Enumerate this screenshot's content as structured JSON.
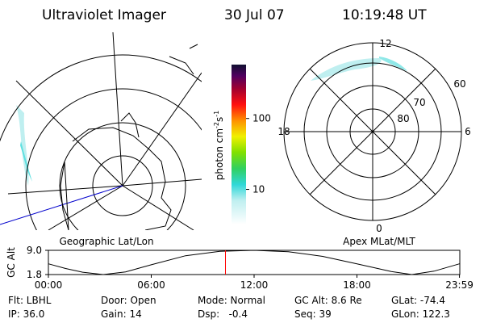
{
  "header": {
    "title": "Ultraviolet Imager",
    "date": "30 Jul 07",
    "time": "10:19:48 UT"
  },
  "geographic_panel": {
    "label": "Geographic Lat/Lon"
  },
  "colorbar": {
    "unit": "photon cm",
    "unit_exp1": "-2",
    "unit_mid": "s",
    "unit_exp2": "-1",
    "scale": "log",
    "range": [
      3.2,
      575
    ],
    "ticks": [
      10,
      100
    ]
  },
  "magnetic_panel": {
    "label": "Apex MLat/MLT",
    "mlt_labels": [
      "12",
      "18",
      "6",
      "0"
    ],
    "mlat_labels": [
      "60",
      "70",
      "80"
    ]
  },
  "altitude_plot": {
    "ylabel": "GC Alt",
    "x": [
      0,
      1,
      2,
      3.2,
      4.5,
      6,
      8,
      10,
      12,
      14,
      16,
      18,
      20,
      21.2,
      22.5,
      23.98
    ],
    "values": [
      5.0,
      3.6,
      2.5,
      1.8,
      2.6,
      4.7,
      7.4,
      8.7,
      9.0,
      8.6,
      7.2,
      5.0,
      2.7,
      1.8,
      2.8,
      5.0
    ],
    "xlim": [
      0,
      24
    ],
    "ylim": [
      1.8,
      9.0
    ],
    "yticks": [
      {
        "value": 9.0,
        "label": "9.0"
      },
      1.8
    ],
    "xticks": [
      {
        "value": 0,
        "label": "00:00"
      },
      {
        "value": 6,
        "label": "06:00"
      },
      {
        "value": 12,
        "label": "12:00"
      },
      {
        "value": 18,
        "label": "18:00"
      },
      {
        "value": 23.98,
        "label": "23:59"
      }
    ],
    "current_time": 10.33,
    "line_color": "#000000",
    "marker_color": "#ff0000"
  },
  "info": {
    "rows": [
      [
        "Flt: LBHL",
        "Door: Open",
        "Mode: Normal",
        "GC Alt: 8.6 Re",
        "GLat: -74.4"
      ],
      [
        "IP: 36.0",
        "Gain: 14",
        "Dsp:   -0.4",
        "Seq: 39",
        "GLon: 122.3"
      ]
    ]
  }
}
